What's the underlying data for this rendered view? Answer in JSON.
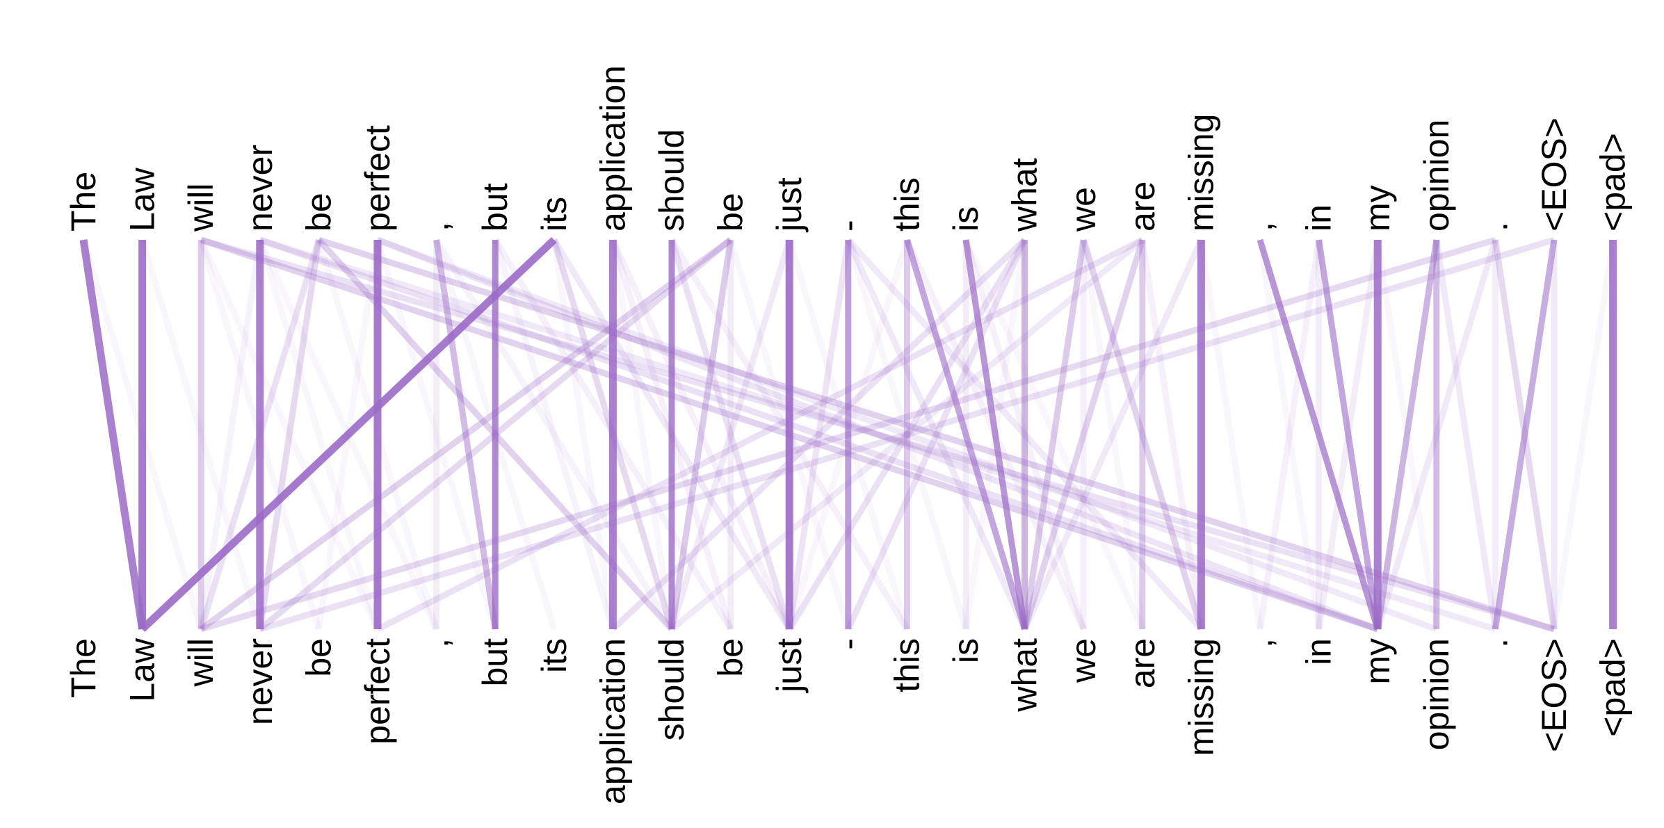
{
  "tokens": [
    "The",
    "Law",
    "will",
    "never",
    "be",
    "perfect",
    ",",
    "but",
    "its",
    "application",
    "should",
    "be",
    "just",
    "-",
    "this",
    "is",
    "what",
    "we",
    "are",
    "missing",
    ",",
    "in",
    "my",
    "opinion",
    ".",
    "<EOS>",
    "<pad>"
  ],
  "link_color": "#9B6BC6",
  "links": [
    [
      0,
      1,
      0.85
    ],
    [
      1,
      1,
      0.9
    ],
    [
      2,
      2,
      0.35
    ],
    [
      3,
      3,
      0.85
    ],
    [
      5,
      5,
      0.9
    ],
    [
      6,
      6,
      0.12
    ],
    [
      7,
      7,
      0.8
    ],
    [
      8,
      1,
      0.9
    ],
    [
      9,
      9,
      0.85
    ],
    [
      10,
      10,
      0.8
    ],
    [
      11,
      11,
      0.12
    ],
    [
      12,
      12,
      0.9
    ],
    [
      13,
      13,
      0.65
    ],
    [
      14,
      14,
      0.35
    ],
    [
      15,
      15,
      0.12
    ],
    [
      16,
      16,
      0.5
    ],
    [
      17,
      17,
      0.1
    ],
    [
      18,
      18,
      0.35
    ],
    [
      19,
      19,
      0.85
    ],
    [
      21,
      21,
      0.12
    ],
    [
      22,
      22,
      0.85
    ],
    [
      23,
      23,
      0.45
    ],
    [
      24,
      24,
      0.12
    ],
    [
      25,
      25,
      0.15
    ],
    [
      26,
      26,
      0.85
    ],
    [
      14,
      16,
      0.6
    ],
    [
      15,
      16,
      0.7
    ],
    [
      20,
      22,
      0.7
    ],
    [
      21,
      22,
      0.6
    ],
    [
      23,
      22,
      0.5
    ],
    [
      25,
      24,
      0.55
    ],
    [
      24,
      25,
      0.25
    ],
    [
      24,
      2,
      0.25
    ],
    [
      25,
      3,
      0.2
    ],
    [
      11,
      2,
      0.3
    ],
    [
      11,
      3,
      0.25
    ],
    [
      18,
      5,
      0.2
    ],
    [
      16,
      9,
      0.2
    ],
    [
      18,
      10,
      0.15
    ],
    [
      10,
      14,
      0.1
    ],
    [
      4,
      3,
      0.25
    ],
    [
      4,
      2,
      0.2
    ],
    [
      4,
      10,
      0.3
    ],
    [
      2,
      22,
      0.3
    ],
    [
      3,
      22,
      0.2
    ],
    [
      5,
      22,
      0.18
    ],
    [
      4,
      25,
      0.3
    ],
    [
      2,
      25,
      0.2
    ],
    [
      3,
      24,
      0.15
    ],
    [
      5,
      23,
      0.15
    ],
    [
      6,
      7,
      0.45
    ],
    [
      8,
      10,
      0.25
    ],
    [
      8,
      12,
      0.15
    ],
    [
      9,
      11,
      0.1
    ],
    [
      10,
      12,
      0.2
    ],
    [
      11,
      10,
      0.35
    ],
    [
      12,
      10,
      0.15
    ],
    [
      13,
      12,
      0.18
    ],
    [
      13,
      16,
      0.15
    ],
    [
      13,
      19,
      0.15
    ],
    [
      16,
      12,
      0.2
    ],
    [
      16,
      13,
      0.2
    ],
    [
      17,
      16,
      0.35
    ],
    [
      17,
      19,
      0.3
    ],
    [
      18,
      16,
      0.3
    ],
    [
      18,
      19,
      0.1
    ],
    [
      19,
      16,
      0.15
    ],
    [
      7,
      11,
      0.1
    ],
    [
      9,
      12,
      0.1
    ],
    [
      14,
      17,
      0.1
    ],
    [
      15,
      17,
      0.1
    ],
    [
      21,
      20,
      0.1
    ],
    [
      22,
      21,
      0.12
    ],
    [
      23,
      24,
      0.15
    ],
    [
      24,
      22,
      0.15
    ],
    [
      26,
      25,
      0.05
    ],
    [
      6,
      10,
      0.08
    ],
    [
      7,
      9,
      0.08
    ],
    [
      5,
      4,
      0.06
    ],
    [
      3,
      6,
      0.06
    ],
    [
      2,
      5,
      0.06
    ],
    [
      4,
      6,
      0.06
    ],
    [
      3,
      5,
      0.06
    ],
    [
      5,
      7,
      0.05
    ],
    [
      8,
      9,
      0.06
    ],
    [
      9,
      10,
      0.06
    ],
    [
      11,
      13,
      0.06
    ],
    [
      12,
      14,
      0.06
    ],
    [
      13,
      15,
      0.06
    ],
    [
      15,
      18,
      0.06
    ],
    [
      17,
      18,
      0.06
    ],
    [
      19,
      20,
      0.06
    ],
    [
      20,
      21,
      0.06
    ],
    [
      22,
      23,
      0.06
    ],
    [
      0,
      2,
      0.05
    ],
    [
      1,
      3,
      0.05
    ],
    [
      2,
      4,
      0.06
    ],
    [
      3,
      2,
      0.08
    ],
    [
      6,
      8,
      0.05
    ],
    [
      14,
      12,
      0.06
    ],
    [
      16,
      15,
      0.06
    ]
  ]
}
